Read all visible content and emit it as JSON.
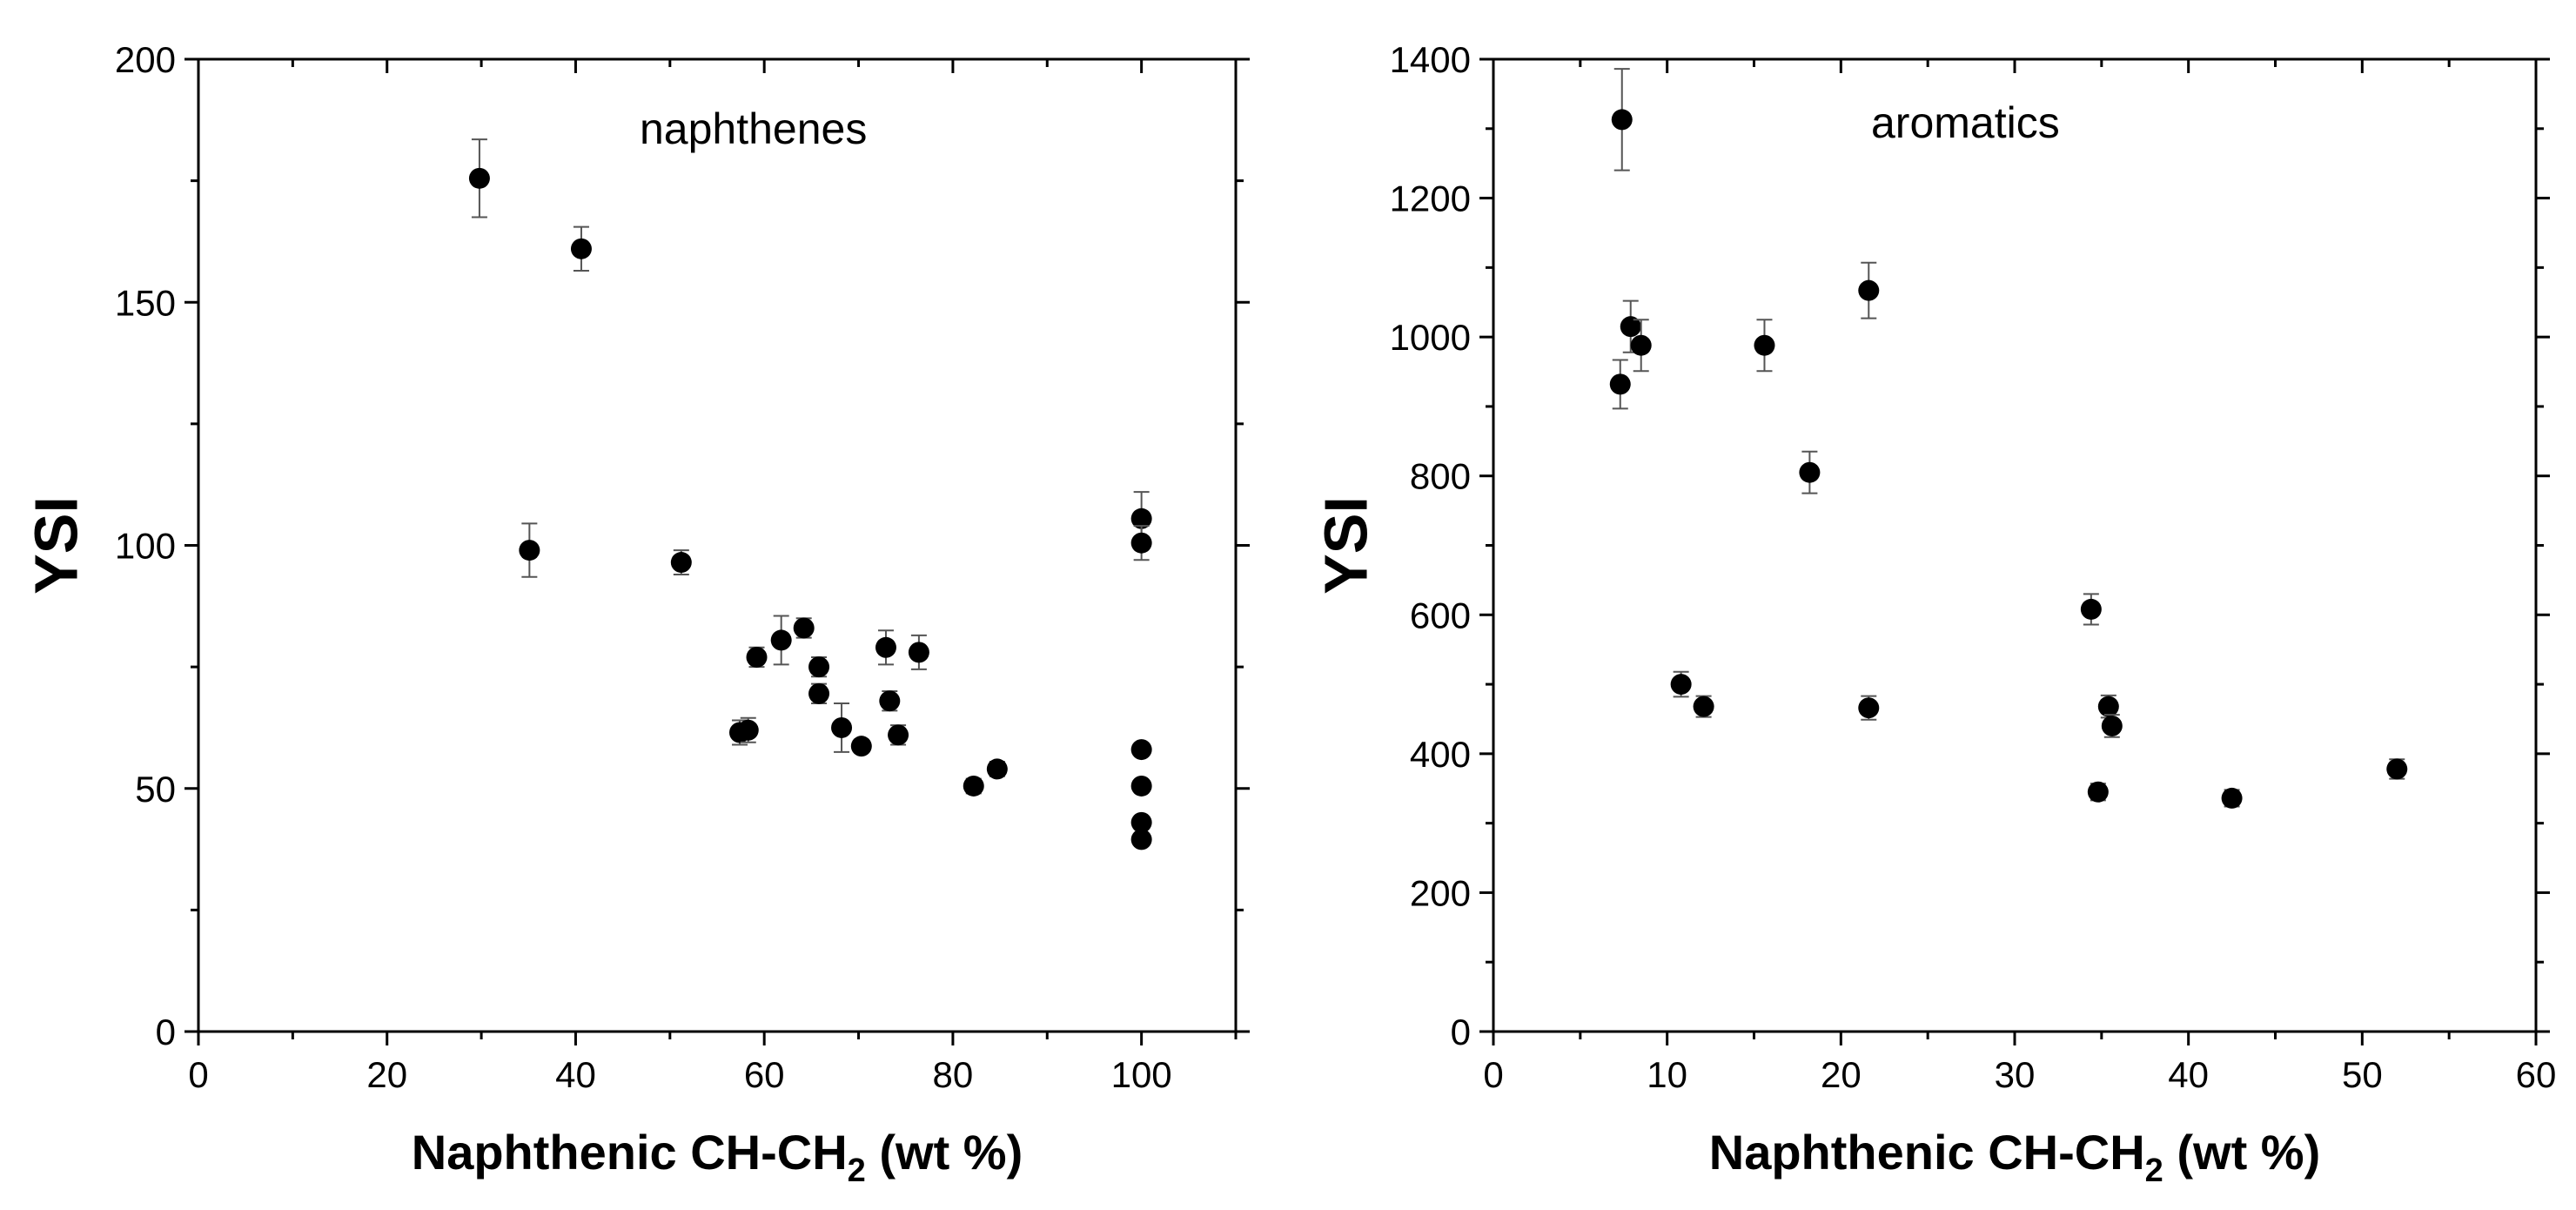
{
  "chart_data": [
    {
      "type": "scatter",
      "panel_label": "naphthenes",
      "xlabel_main": "Naphthenic CH-CH",
      "xlabel_sub": "2",
      "xlabel_tail": " (wt %)",
      "ylabel": "YSI",
      "xlim": [
        0,
        110
      ],
      "ylim": [
        0,
        200
      ],
      "xticks": [
        0,
        20,
        40,
        60,
        80,
        100
      ],
      "yticks": [
        0,
        50,
        100,
        150,
        200
      ],
      "points": [
        {
          "x": 29.8,
          "y": 175.5,
          "err": 8
        },
        {
          "x": 40.6,
          "y": 161,
          "err": 4.5
        },
        {
          "x": 35.1,
          "y": 99,
          "err": 5.5
        },
        {
          "x": 51.2,
          "y": 96.5,
          "err": 2.5
        },
        {
          "x": 57.4,
          "y": 61.5,
          "err": 2.5
        },
        {
          "x": 58.3,
          "y": 62,
          "err": 2.5
        },
        {
          "x": 59.2,
          "y": 77,
          "err": 2
        },
        {
          "x": 61.8,
          "y": 80.5,
          "err": 5
        },
        {
          "x": 64.2,
          "y": 83,
          "err": 2
        },
        {
          "x": 65.8,
          "y": 75,
          "err": 2
        },
        {
          "x": 65.8,
          "y": 69.5,
          "err": 2
        },
        {
          "x": 68.2,
          "y": 62.5,
          "err": 5
        },
        {
          "x": 70.3,
          "y": 58.7,
          "err": 1
        },
        {
          "x": 72.9,
          "y": 79,
          "err": 3.5
        },
        {
          "x": 73.3,
          "y": 68,
          "err": 2
        },
        {
          "x": 74.2,
          "y": 61,
          "err": 2
        },
        {
          "x": 76.4,
          "y": 78,
          "err": 3.5
        },
        {
          "x": 82.2,
          "y": 50.5,
          "err": 1.5
        },
        {
          "x": 84.7,
          "y": 54,
          "err": 1.5
        },
        {
          "x": 100,
          "y": 105.5,
          "err": 5.5
        },
        {
          "x": 100,
          "y": 100.5,
          "err": 3.5
        },
        {
          "x": 100,
          "y": 58,
          "err": 1
        },
        {
          "x": 100,
          "y": 50.5,
          "err": 1
        },
        {
          "x": 100,
          "y": 43,
          "err": 1
        },
        {
          "x": 100,
          "y": 39.5,
          "err": 1
        }
      ]
    },
    {
      "type": "scatter",
      "panel_label": "aromatics",
      "xlabel_main": "Naphthenic CH-CH",
      "xlabel_sub": "2",
      "xlabel_tail": " (wt %)",
      "ylabel": "YSI",
      "xlim": [
        0,
        60
      ],
      "ylim": [
        0,
        1400
      ],
      "xticks": [
        0,
        10,
        20,
        30,
        40,
        50,
        60
      ],
      "yticks": [
        0,
        200,
        400,
        600,
        800,
        1000,
        1200,
        1400
      ],
      "points": [
        {
          "x": 7.4,
          "y": 1313,
          "err": 73
        },
        {
          "x": 7.3,
          "y": 932,
          "err": 35
        },
        {
          "x": 7.9,
          "y": 1015,
          "err": 37
        },
        {
          "x": 8.5,
          "y": 988,
          "err": 37
        },
        {
          "x": 10.8,
          "y": 500,
          "err": 18
        },
        {
          "x": 12.1,
          "y": 468,
          "err": 15
        },
        {
          "x": 15.6,
          "y": 988,
          "err": 37
        },
        {
          "x": 18.2,
          "y": 805,
          "err": 30
        },
        {
          "x": 21.6,
          "y": 1067,
          "err": 40
        },
        {
          "x": 21.6,
          "y": 466,
          "err": 17
        },
        {
          "x": 34.4,
          "y": 608,
          "err": 22
        },
        {
          "x": 34.8,
          "y": 345,
          "err": 12
        },
        {
          "x": 35.4,
          "y": 468,
          "err": 16
        },
        {
          "x": 35.6,
          "y": 440,
          "err": 16
        },
        {
          "x": 42.5,
          "y": 336,
          "err": 12
        },
        {
          "x": 52,
          "y": 378,
          "err": 14
        }
      ]
    }
  ]
}
